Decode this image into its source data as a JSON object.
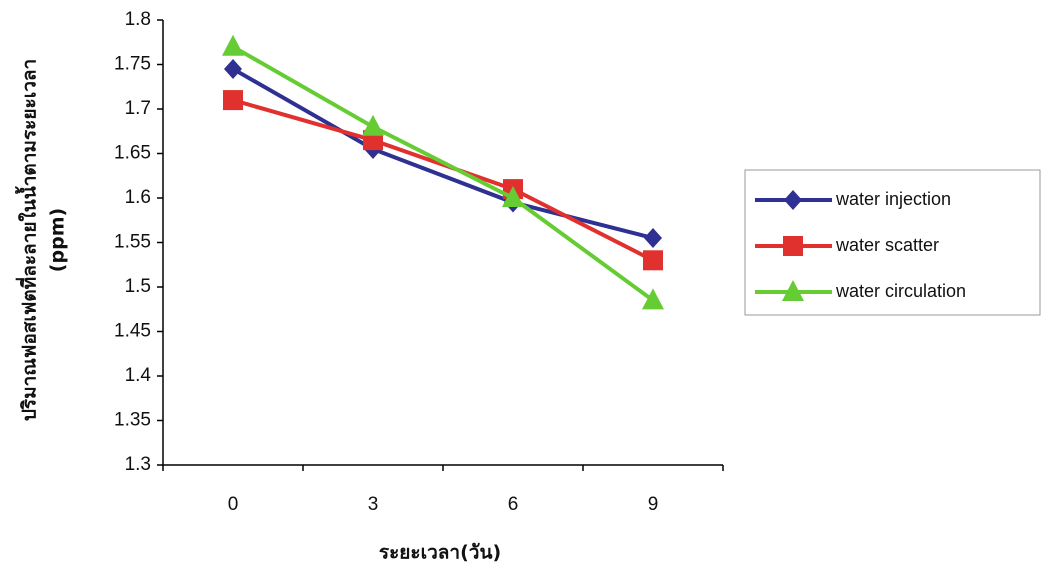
{
  "chart_data": {
    "type": "line",
    "y_label": [
      "ปริมาณฟอสเฟตที่ละลายในน้ำตามระยะเวลา",
      "(ppm)"
    ],
    "x_label": "ระยะเวลา(วัน)",
    "categories": [
      "0",
      "3",
      "6",
      "9"
    ],
    "series": [
      {
        "name": "water injection",
        "color": "#2e3192",
        "marker": "diamond",
        "values": [
          1.745,
          1.655,
          1.595,
          1.555
        ]
      },
      {
        "name": "water scatter",
        "color": "#e0312e",
        "marker": "square",
        "values": [
          1.71,
          1.665,
          1.61,
          1.53
        ]
      },
      {
        "name": "water circulation",
        "color": "#66cc33",
        "marker": "triangle",
        "values": [
          1.77,
          1.68,
          1.6,
          1.485
        ]
      }
    ],
    "ylim": [
      1.3,
      1.8
    ],
    "yticks": [
      1.3,
      1.35,
      1.4,
      1.45,
      1.5,
      1.55,
      1.6,
      1.65,
      1.7,
      1.75,
      1.8
    ],
    "grid": false,
    "legend": "right"
  }
}
